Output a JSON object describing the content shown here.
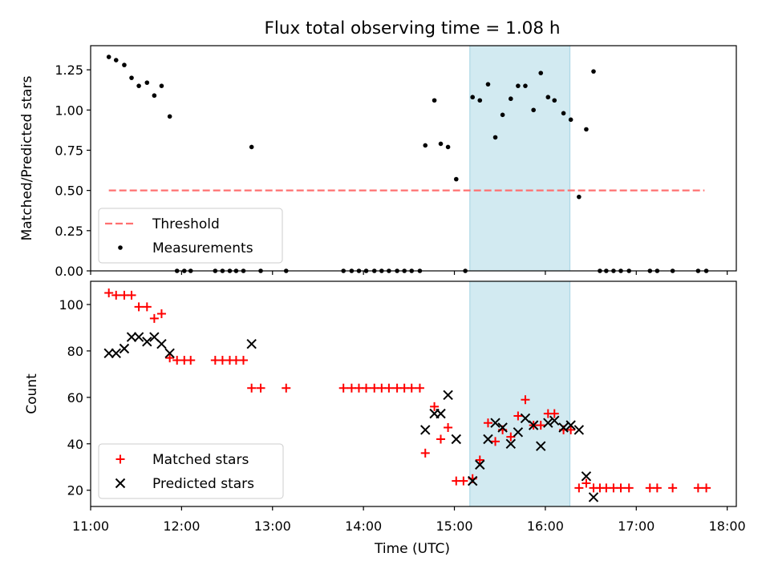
{
  "chart_data": [
    {
      "type": "scatter",
      "title": "Flux total observing time = 1.08 h",
      "xlabel": "",
      "ylabel": "Matched/Predicted stars",
      "xlim": [
        11.0,
        18.1
      ],
      "ylim": [
        0.0,
        1.4
      ],
      "yticks": [
        0.0,
        0.25,
        0.5,
        0.75,
        1.0,
        1.25
      ],
      "ytick_labels": [
        "0.00",
        "0.25",
        "0.50",
        "0.75",
        "1.00",
        "1.25"
      ],
      "xticks": [
        11,
        12,
        13,
        14,
        15,
        16,
        17,
        18
      ],
      "highlight_span": [
        15.17,
        16.27
      ],
      "highlight_color": "#add8e6",
      "threshold": {
        "name": "Threshold",
        "y": 0.5,
        "x": [
          11.2,
          17.75
        ],
        "color": "#ff7070"
      },
      "legend": {
        "placement": "lower-left",
        "entries": [
          "Threshold",
          "Measurements"
        ]
      },
      "series": [
        {
          "name": "Measurements",
          "color": "#000000",
          "marker": "dot",
          "points": [
            [
              11.2,
              1.33
            ],
            [
              11.28,
              1.31
            ],
            [
              11.37,
              1.28
            ],
            [
              11.45,
              1.2
            ],
            [
              11.53,
              1.15
            ],
            [
              11.62,
              1.17
            ],
            [
              11.7,
              1.09
            ],
            [
              11.78,
              1.15
            ],
            [
              11.87,
              0.96
            ],
            [
              11.95,
              0.0
            ],
            [
              12.03,
              0.0
            ],
            [
              12.1,
              0.0
            ],
            [
              12.37,
              0.0
            ],
            [
              12.45,
              0.0
            ],
            [
              12.53,
              0.0
            ],
            [
              12.6,
              0.0
            ],
            [
              12.68,
              0.0
            ],
            [
              12.77,
              0.77
            ],
            [
              12.87,
              0.0
            ],
            [
              13.15,
              0.0
            ],
            [
              13.78,
              0.0
            ],
            [
              13.87,
              0.0
            ],
            [
              13.95,
              0.0
            ],
            [
              14.03,
              0.0
            ],
            [
              14.12,
              0.0
            ],
            [
              14.2,
              0.0
            ],
            [
              14.28,
              0.0
            ],
            [
              14.37,
              0.0
            ],
            [
              14.45,
              0.0
            ],
            [
              14.53,
              0.0
            ],
            [
              14.62,
              0.0
            ],
            [
              14.68,
              0.78
            ],
            [
              14.78,
              1.06
            ],
            [
              14.85,
              0.79
            ],
            [
              14.93,
              0.77
            ],
            [
              15.02,
              0.57
            ],
            [
              15.12,
              0.0
            ],
            [
              15.2,
              1.08
            ],
            [
              15.28,
              1.06
            ],
            [
              15.37,
              1.16
            ],
            [
              15.45,
              0.83
            ],
            [
              15.53,
              0.97
            ],
            [
              15.62,
              1.07
            ],
            [
              15.7,
              1.15
            ],
            [
              15.78,
              1.15
            ],
            [
              15.87,
              1.0
            ],
            [
              15.95,
              1.23
            ],
            [
              16.03,
              1.08
            ],
            [
              16.1,
              1.06
            ],
            [
              16.2,
              0.98
            ],
            [
              16.28,
              0.94
            ],
            [
              16.37,
              0.46
            ],
            [
              16.45,
              0.88
            ],
            [
              16.53,
              1.24
            ],
            [
              16.6,
              0.0
            ],
            [
              16.67,
              0.0
            ],
            [
              16.75,
              0.0
            ],
            [
              16.83,
              0.0
            ],
            [
              16.92,
              0.0
            ],
            [
              17.15,
              0.0
            ],
            [
              17.23,
              0.0
            ],
            [
              17.4,
              0.0
            ],
            [
              17.68,
              0.0
            ],
            [
              17.77,
              0.0
            ]
          ]
        }
      ]
    },
    {
      "type": "scatter",
      "title": "",
      "xlabel": "Time (UTC)",
      "ylabel": "Count",
      "xlim": [
        11.0,
        18.1
      ],
      "ylim": [
        13,
        110
      ],
      "yticks": [
        20,
        40,
        60,
        80,
        100
      ],
      "ytick_labels": [
        "20",
        "40",
        "60",
        "80",
        "100"
      ],
      "xticks": [
        11,
        12,
        13,
        14,
        15,
        16,
        17,
        18
      ],
      "xtick_labels": [
        "11:00",
        "12:00",
        "13:00",
        "14:00",
        "15:00",
        "16:00",
        "17:00",
        "18:00"
      ],
      "highlight_span": [
        15.17,
        16.27
      ],
      "highlight_color": "#add8e6",
      "legend": {
        "placement": "lower-left",
        "entries": [
          "Matched stars",
          "Predicted stars"
        ]
      },
      "series": [
        {
          "name": "Matched stars",
          "color": "#ff0000",
          "marker": "plus",
          "points": [
            [
              11.2,
              105
            ],
            [
              11.28,
              104
            ],
            [
              11.37,
              104
            ],
            [
              11.45,
              104
            ],
            [
              11.53,
              99
            ],
            [
              11.62,
              99
            ],
            [
              11.7,
              94
            ],
            [
              11.78,
              96
            ],
            [
              11.87,
              77
            ],
            [
              11.95,
              76
            ],
            [
              12.03,
              76
            ],
            [
              12.1,
              76
            ],
            [
              12.37,
              76
            ],
            [
              12.45,
              76
            ],
            [
              12.53,
              76
            ],
            [
              12.6,
              76
            ],
            [
              12.68,
              76
            ],
            [
              12.77,
              64
            ],
            [
              12.87,
              64
            ],
            [
              13.15,
              64
            ],
            [
              13.78,
              64
            ],
            [
              13.87,
              64
            ],
            [
              13.95,
              64
            ],
            [
              14.03,
              64
            ],
            [
              14.12,
              64
            ],
            [
              14.2,
              64
            ],
            [
              14.28,
              64
            ],
            [
              14.37,
              64
            ],
            [
              14.45,
              64
            ],
            [
              14.53,
              64
            ],
            [
              14.62,
              64
            ],
            [
              14.68,
              36
            ],
            [
              14.78,
              56
            ],
            [
              14.85,
              42
            ],
            [
              14.93,
              47
            ],
            [
              15.02,
              24
            ],
            [
              15.1,
              24
            ],
            [
              15.2,
              25
            ],
            [
              15.28,
              33
            ],
            [
              15.37,
              49
            ],
            [
              15.45,
              41
            ],
            [
              15.53,
              46
            ],
            [
              15.62,
              43
            ],
            [
              15.7,
              52
            ],
            [
              15.78,
              59
            ],
            [
              15.87,
              48
            ],
            [
              15.95,
              48
            ],
            [
              16.03,
              53
            ],
            [
              16.1,
              53
            ],
            [
              16.2,
              46
            ],
            [
              16.28,
              46
            ],
            [
              16.37,
              21
            ],
            [
              16.45,
              23
            ],
            [
              16.53,
              21
            ],
            [
              16.6,
              21
            ],
            [
              16.67,
              21
            ],
            [
              16.75,
              21
            ],
            [
              16.83,
              21
            ],
            [
              16.92,
              21
            ],
            [
              17.15,
              21
            ],
            [
              17.23,
              21
            ],
            [
              17.4,
              21
            ],
            [
              17.68,
              21
            ],
            [
              17.77,
              21
            ]
          ]
        },
        {
          "name": "Predicted stars",
          "color": "#000000",
          "marker": "x",
          "points": [
            [
              11.2,
              79
            ],
            [
              11.28,
              79
            ],
            [
              11.37,
              81
            ],
            [
              11.45,
              86
            ],
            [
              11.53,
              86
            ],
            [
              11.62,
              84
            ],
            [
              11.7,
              86
            ],
            [
              11.78,
              83
            ],
            [
              11.87,
              79
            ],
            [
              12.77,
              83
            ],
            [
              14.68,
              46
            ],
            [
              14.78,
              53
            ],
            [
              14.85,
              53
            ],
            [
              14.93,
              61
            ],
            [
              15.02,
              42
            ],
            [
              15.2,
              24
            ],
            [
              15.28,
              31
            ],
            [
              15.37,
              42
            ],
            [
              15.45,
              49
            ],
            [
              15.53,
              47
            ],
            [
              15.62,
              40
            ],
            [
              15.7,
              45
            ],
            [
              15.78,
              51
            ],
            [
              15.87,
              48
            ],
            [
              15.95,
              39
            ],
            [
              16.03,
              49
            ],
            [
              16.1,
              50
            ],
            [
              16.2,
              47
            ],
            [
              16.28,
              48
            ],
            [
              16.37,
              46
            ],
            [
              16.45,
              26
            ],
            [
              16.53,
              17
            ]
          ]
        }
      ]
    }
  ]
}
